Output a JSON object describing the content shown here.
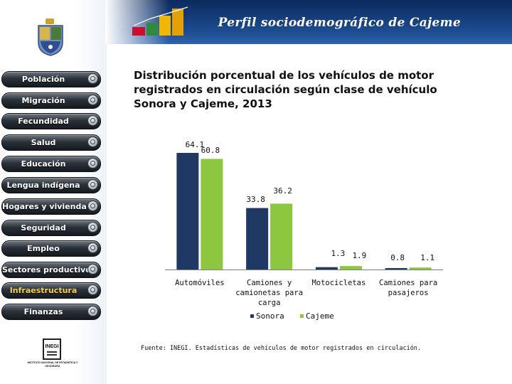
{
  "header": {
    "title": "Perfil sociodemográfico de Cajeme"
  },
  "sidebar": {
    "items": [
      {
        "label": "Población"
      },
      {
        "label": "Migración"
      },
      {
        "label": "Fecundidad"
      },
      {
        "label": "Salud"
      },
      {
        "label": "Educación"
      },
      {
        "label": "Lengua indígena"
      },
      {
        "label": "Hogares y vivienda"
      },
      {
        "label": "Seguridad"
      },
      {
        "label": "Empleo"
      },
      {
        "label": "Sectores productivos"
      },
      {
        "label": "Infraestructura"
      },
      {
        "label": "Finanzas"
      }
    ],
    "active_index": 10,
    "logo_text": "INEGI",
    "logo_caption": "INSTITUTO NACIONAL DE ESTADÍSTICA Y GEOGRAFÍA"
  },
  "chart_data": {
    "type": "bar",
    "title": "Distribución porcentual de los vehículos de motor registrados en circulación según clase de vehículo Sonora y Cajeme, 2013",
    "categories": [
      "Automóviles",
      "Camiones y camionetas para carga",
      "Motocicletas",
      "Camiones para pasajeros"
    ],
    "category_lines": [
      [
        "Automóviles"
      ],
      [
        "Camiones y",
        "camionetas para",
        "carga"
      ],
      [
        "Motocicletas"
      ],
      [
        "Camiones para",
        "pasajeros"
      ]
    ],
    "series": [
      {
        "name": "Sonora",
        "values": [
          64.1,
          33.8,
          1.3,
          0.8
        ],
        "labels": [
          "64.1",
          "33.8",
          "1.3",
          "0.8"
        ],
        "color": "#1f3864"
      },
      {
        "name": "Cajeme",
        "values": [
          60.8,
          36.2,
          1.9,
          1.1
        ],
        "labels": [
          "60.8",
          "36.2",
          "1.9",
          "1.1"
        ],
        "color": "#8dc63f"
      }
    ],
    "ylim": [
      0,
      64.1
    ],
    "legend": "bottom",
    "grid": false
  },
  "footnote": "Fuente: INEGI. Estadísticas de vehículos de motor registrados en circulación."
}
